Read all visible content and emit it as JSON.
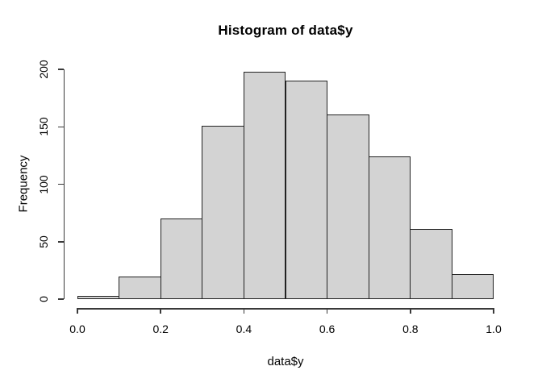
{
  "chart_data": {
    "type": "bar",
    "subtype": "histogram",
    "title": "Histogram of data$y",
    "xlabel": "data$y",
    "ylabel": "Frequency",
    "bin_edges": [
      0.0,
      0.1,
      0.2,
      0.3,
      0.4,
      0.5,
      0.6,
      0.7,
      0.8,
      0.9,
      1.0
    ],
    "values": [
      3,
      20,
      70,
      151,
      198,
      190,
      161,
      124,
      61,
      22
    ],
    "xlim": [
      0.0,
      1.0
    ],
    "ylim": [
      0,
      200
    ],
    "x_ticks": [
      0.0,
      0.2,
      0.4,
      0.6,
      0.8,
      1.0
    ],
    "x_tick_labels": [
      "0.0",
      "0.2",
      "0.4",
      "0.6",
      "0.8",
      "1.0"
    ],
    "y_ticks": [
      0,
      50,
      100,
      150,
      200
    ],
    "y_tick_labels": [
      "0",
      "50",
      "100",
      "150",
      "200"
    ],
    "grid": false,
    "legend": null,
    "bar_fill": "#d3d3d3",
    "bar_border": "#222222",
    "axis_color": "#3a3a3a",
    "background": "#ffffff"
  }
}
